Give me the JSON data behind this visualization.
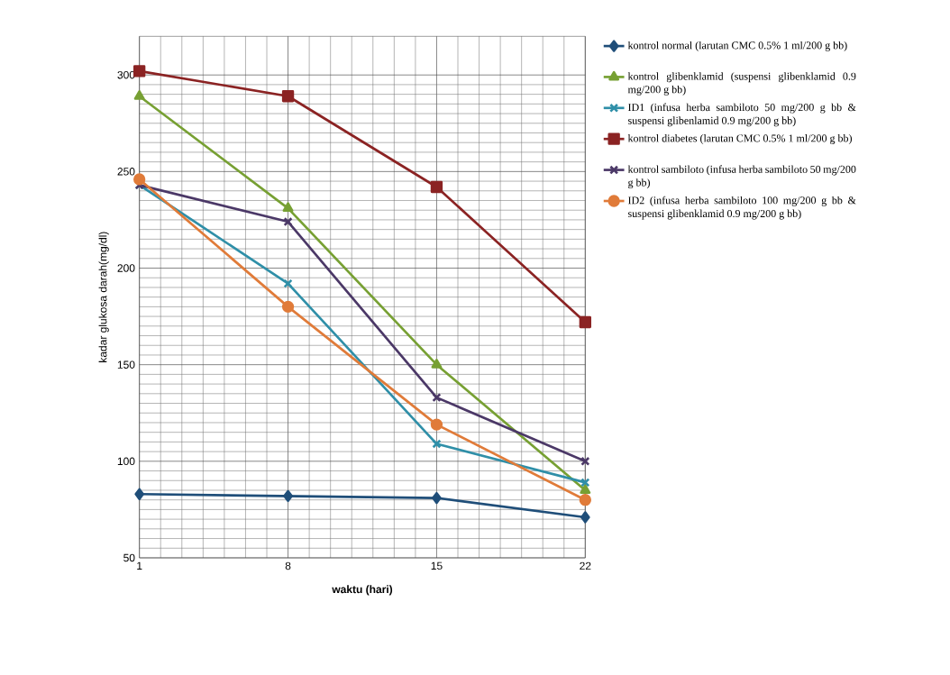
{
  "chart_data": {
    "type": "line",
    "xlabel": "waktu (hari)",
    "ylabel": "kadar glukosa darah(mg/dl)",
    "x": [
      1,
      8,
      15,
      22
    ],
    "xlim": [
      1,
      22
    ],
    "xticks": [
      1,
      8,
      15,
      22
    ],
    "ylim": [
      50,
      320
    ],
    "yticks": [
      50,
      100,
      150,
      200,
      250,
      300
    ],
    "grid": true,
    "legend": "right",
    "line_style": "solid",
    "series": [
      {
        "name": "kontrol normal (larutan CMC 0.5% 1 ml/200 g bb)",
        "color": "#1f4e79",
        "marker": "diamond",
        "values": [
          83,
          82,
          81,
          71
        ]
      },
      {
        "name": "kontrol glibenklamid (suspensi glibenklamid 0.9 mg/200 g bb)",
        "color": "#77a033",
        "marker": "triangle",
        "values": [
          289,
          231,
          150,
          85
        ]
      },
      {
        "name": "ID1 (infusa herba sambiloto 50 mg/200 g bb & suspensi glibenlamid 0.9 mg/200 g bb)",
        "color": "#2f8fa8",
        "marker": "cross",
        "values": [
          243,
          192,
          109,
          89
        ]
      },
      {
        "name": "kontrol diabetes (larutan CMC 0.5% 1 ml/200 g bb)",
        "color": "#8b2323",
        "marker": "square",
        "values": [
          302,
          289,
          242,
          172
        ]
      },
      {
        "name": "kontrol sambiloto (infusa herba sambiloto 50 mg/200 g bb)",
        "color": "#4b3867",
        "marker": "cross",
        "values": [
          243,
          224,
          133,
          100
        ]
      },
      {
        "name": "ID2 (infusa herba sambiloto 100 mg/200 g bb & suspensi glibenklamid 0.9 mg/200 g bb)",
        "color": "#e07b39",
        "marker": "circle",
        "values": [
          246,
          180,
          119,
          80
        ]
      }
    ]
  }
}
